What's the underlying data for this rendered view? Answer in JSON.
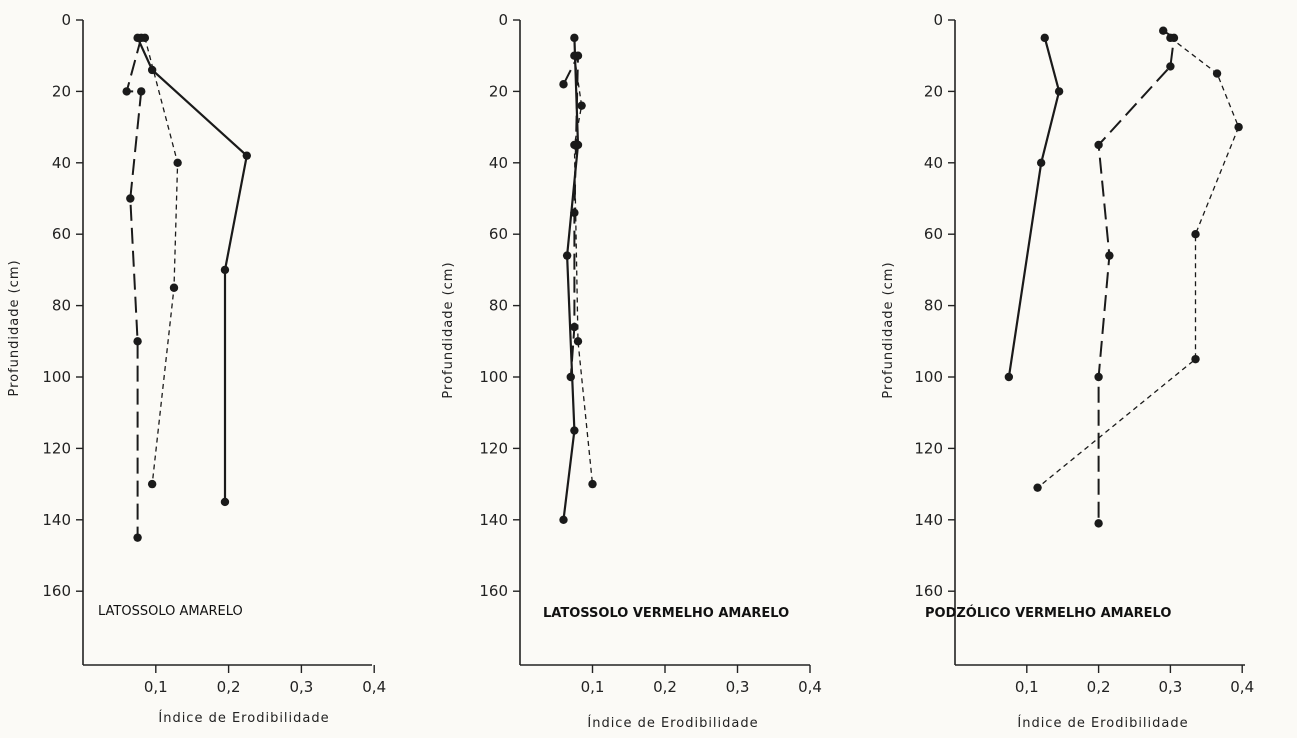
{
  "chart_data": [
    {
      "type": "line",
      "title": "LATOSSOLO AMARELO",
      "xlabel": "Índice de Erodibilidade",
      "ylabel": "Profundidade (cm)",
      "xlim": [
        0,
        0.4
      ],
      "ylim": [
        0,
        175
      ],
      "y_inverted": true,
      "x_ticks": [
        "0,1",
        "0,2",
        "0,3",
        "0,4"
      ],
      "y_ticks": [
        "0",
        "20",
        "40",
        "60",
        "80",
        "100",
        "120",
        "140",
        "160"
      ],
      "series": [
        {
          "style": "solid",
          "x": [
            0.075,
            0.095,
            0.225,
            0.195,
            0.195
          ],
          "y": [
            5,
            14,
            38,
            70,
            135
          ]
        },
        {
          "style": "long-dash",
          "x": [
            0.08,
            0.06,
            0.08,
            0.065,
            0.075,
            0.075
          ],
          "y": [
            5,
            20,
            20,
            50,
            90,
            145
          ]
        },
        {
          "style": "short-dash",
          "x": [
            0.085,
            0.13,
            0.125,
            0.095
          ],
          "y": [
            5,
            40,
            75,
            130
          ]
        }
      ]
    },
    {
      "type": "line",
      "title": "LATOSSOLO VERMELHO AMARELO",
      "xlabel": "Índice de Erodibilidade",
      "ylabel": "Profundidade (cm)",
      "xlim": [
        0,
        0.4
      ],
      "ylim": [
        0,
        175
      ],
      "y_inverted": true,
      "x_ticks": [
        "0,1",
        "0,2",
        "0,3",
        "0,4"
      ],
      "y_ticks": [
        "0",
        "20",
        "40",
        "60",
        "80",
        "100",
        "120",
        "140",
        "160"
      ],
      "series": [
        {
          "style": "solid",
          "x": [
            0.075,
            0.08,
            0.065,
            0.075,
            0.06
          ],
          "y": [
            5,
            35,
            66,
            115,
            140
          ]
        },
        {
          "style": "long-dash",
          "x": [
            0.06,
            0.08,
            0.075,
            0.075,
            0.07
          ],
          "y": [
            18,
            10,
            54,
            86,
            100
          ]
        },
        {
          "style": "short-dash",
          "x": [
            0.075,
            0.085,
            0.075,
            0.08,
            0.1
          ],
          "y": [
            10,
            24,
            35,
            90,
            130
          ]
        }
      ]
    },
    {
      "type": "line",
      "title": "PODZÓLICO VERMELHO AMARELO",
      "xlabel": "Índice de Erodibilidade",
      "ylabel": "Profundidade (cm)",
      "xlim": [
        0,
        0.4
      ],
      "ylim": [
        0,
        175
      ],
      "y_inverted": true,
      "x_ticks": [
        "0,1",
        "0,2",
        "0,3",
        "0,4"
      ],
      "y_ticks": [
        "0",
        "20",
        "40",
        "60",
        "80",
        "100",
        "120",
        "140",
        "160"
      ],
      "series": [
        {
          "style": "solid",
          "x": [
            0.125,
            0.145,
            0.12,
            0.075
          ],
          "y": [
            5,
            20,
            40,
            100
          ]
        },
        {
          "style": "long-dash",
          "x": [
            0.29,
            0.305,
            0.3,
            0.2,
            0.215,
            0.2,
            0.2
          ],
          "y": [
            3,
            5,
            13,
            35,
            66,
            100,
            141
          ]
        },
        {
          "style": "short-dash",
          "x": [
            0.3,
            0.365,
            0.395,
            0.335,
            0.335,
            0.115
          ],
          "y": [
            5,
            15,
            30,
            60,
            95,
            131
          ]
        }
      ]
    }
  ]
}
